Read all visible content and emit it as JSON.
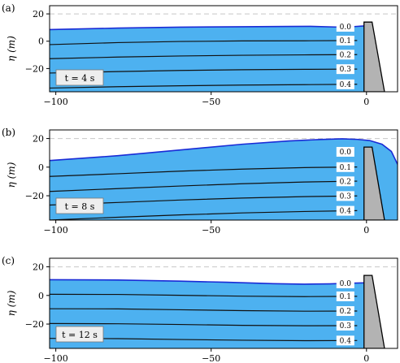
{
  "chart_data": [
    {
      "type": "area",
      "panel_label": "(a)",
      "time_label": "t = 4 s",
      "ylabel": "η (m)",
      "xlim": [
        -102,
        10
      ],
      "ylim": [
        -37,
        26
      ],
      "xticks": [
        -100,
        -50,
        0
      ],
      "xtick_labels": [
        "−100",
        "−50",
        "0"
      ],
      "yticks": [
        20,
        0,
        -20
      ],
      "ytick_labels": [
        "20",
        "0",
        "−20"
      ],
      "dashed_reference_y": 20,
      "surface": [
        [
          -102,
          8.5
        ],
        [
          -80,
          9.6
        ],
        [
          -60,
          10.3
        ],
        [
          -40,
          10.6
        ],
        [
          -25,
          10.8
        ],
        [
          -18,
          10.9
        ],
        [
          -10,
          10.4
        ],
        [
          -4,
          10.7
        ],
        [
          -0.8,
          11.2
        ]
      ],
      "wall": {
        "x_left": [
          -0.8,
          -0.8
        ],
        "x_right": [
          1.8,
          5.8
        ],
        "top": 14,
        "bottom": -37
      },
      "contours": [
        {
          "label": "0.1",
          "points": [
            [
              -102,
              -2.5
            ],
            [
              -80,
              -1.0
            ],
            [
              -60,
              -0.2
            ],
            [
              -40,
              0.2
            ],
            [
              -20,
              0.3
            ],
            [
              -3,
              0.5
            ]
          ]
        },
        {
          "label": "0.2",
          "points": [
            [
              -102,
              -12.8
            ],
            [
              -80,
              -11.6
            ],
            [
              -60,
              -10.8
            ],
            [
              -40,
              -10.3
            ],
            [
              -20,
              -10.0
            ],
            [
              -3,
              -9.8
            ]
          ]
        },
        {
          "label": "0.3",
          "points": [
            [
              -102,
              -23.3
            ],
            [
              -80,
              -22.2
            ],
            [
              -60,
              -21.4
            ],
            [
              -40,
              -20.9
            ],
            [
              -20,
              -20.6
            ],
            [
              -3,
              -20.4
            ]
          ]
        },
        {
          "label": "0.4",
          "points": [
            [
              -102,
              -34.3
            ],
            [
              -80,
              -33.3
            ],
            [
              -60,
              -32.6
            ],
            [
              -40,
              -32.1
            ],
            [
              -20,
              -31.8
            ],
            [
              -3,
              -31.5
            ]
          ]
        }
      ],
      "surface_label": "0.0"
    },
    {
      "type": "area",
      "panel_label": "(b)",
      "time_label": "t = 8 s",
      "ylabel": "η (m)",
      "xlim": [
        -102,
        10
      ],
      "ylim": [
        -37,
        26
      ],
      "xticks": [
        -100,
        -50,
        0
      ],
      "xtick_labels": [
        "−100",
        "−50",
        "0"
      ],
      "yticks": [
        20,
        0,
        -20
      ],
      "ytick_labels": [
        "20",
        "0",
        "−20"
      ],
      "dashed_reference_y": 20,
      "surface": [
        [
          -102,
          4.6
        ],
        [
          -80,
          8.0
        ],
        [
          -60,
          12.0
        ],
        [
          -40,
          16.0
        ],
        [
          -25,
          18.3
        ],
        [
          -15,
          19.3
        ],
        [
          -8,
          19.8
        ],
        [
          -3,
          19.4
        ],
        [
          1,
          18.6
        ],
        [
          5,
          16.0
        ],
        [
          8,
          11.0
        ],
        [
          10,
          2.0
        ]
      ],
      "wall": {
        "x_left": [
          -0.8,
          -0.8
        ],
        "x_right": [
          1.8,
          5.8
        ],
        "top": 14,
        "bottom": -37
      },
      "contours": [
        {
          "label": "0.1",
          "points": [
            [
              -102,
              -6.5
            ],
            [
              -80,
              -4.6
            ],
            [
              -60,
              -2.8
            ],
            [
              -40,
              -1.4
            ],
            [
              -20,
              -0.3
            ],
            [
              -3,
              0.1
            ]
          ]
        },
        {
          "label": "0.2",
          "points": [
            [
              -102,
              -17.0
            ],
            [
              -80,
              -15.0
            ],
            [
              -60,
              -13.2
            ],
            [
              -40,
              -11.6
            ],
            [
              -20,
              -10.4
            ],
            [
              -3,
              -9.8
            ]
          ]
        },
        {
          "label": "0.3",
          "points": [
            [
              -102,
              -26.5
            ],
            [
              -80,
              -24.7
            ],
            [
              -60,
              -23.0
            ],
            [
              -40,
              -21.6
            ],
            [
              -20,
              -20.6
            ],
            [
              -3,
              -20.1
            ]
          ]
        },
        {
          "label": "0.4",
          "points": [
            [
              -102,
              -37.0
            ],
            [
              -80,
              -35.0
            ],
            [
              -60,
              -33.4
            ],
            [
              -40,
              -32.0
            ],
            [
              -20,
              -31.0
            ],
            [
              -3,
              -30.4
            ]
          ]
        }
      ],
      "surface_label": "0.0"
    },
    {
      "type": "area",
      "panel_label": "(c)",
      "time_label": "t = 12 s",
      "ylabel": "η (m)",
      "xlim": [
        -102,
        10
      ],
      "ylim": [
        -37,
        26
      ],
      "xticks": [
        -100,
        -50,
        0
      ],
      "xtick_labels": [
        "−100",
        "−50",
        "0"
      ],
      "yticks": [
        20,
        0,
        -20
      ],
      "ytick_labels": [
        "20",
        "0",
        "−20"
      ],
      "dashed_reference_y": 20,
      "surface": [
        [
          -102,
          11.0
        ],
        [
          -80,
          10.8
        ],
        [
          -60,
          10.0
        ],
        [
          -45,
          9.2
        ],
        [
          -30,
          8.2
        ],
        [
          -20,
          7.9
        ],
        [
          -12,
          8.1
        ],
        [
          -6,
          8.5
        ],
        [
          -0.8,
          8.8
        ]
      ],
      "wall": {
        "x_left": [
          -0.8,
          -0.8
        ],
        "x_right": [
          1.8,
          5.8
        ],
        "top": 14,
        "bottom": -37
      },
      "contours": [
        {
          "label": "0.1",
          "points": [
            [
              -102,
              0.8
            ],
            [
              -80,
              0.7
            ],
            [
              -60,
              0.1
            ],
            [
              -40,
              -0.5
            ],
            [
              -20,
              -0.8
            ],
            [
              -3,
              -0.6
            ]
          ]
        },
        {
          "label": "0.2",
          "points": [
            [
              -102,
              -9.3
            ],
            [
              -80,
              -9.4
            ],
            [
              -60,
              -10.0
            ],
            [
              -40,
              -10.6
            ],
            [
              -20,
              -11.0
            ],
            [
              -3,
              -10.9
            ]
          ]
        },
        {
          "label": "0.3",
          "points": [
            [
              -102,
              -19.6
            ],
            [
              -80,
              -19.8
            ],
            [
              -60,
              -20.3
            ],
            [
              -40,
              -20.9
            ],
            [
              -20,
              -21.2
            ],
            [
              -3,
              -21.1
            ]
          ]
        },
        {
          "label": "0.4",
          "points": [
            [
              -102,
              -30.0
            ],
            [
              -80,
              -30.2
            ],
            [
              -60,
              -30.8
            ],
            [
              -40,
              -31.3
            ],
            [
              -20,
              -31.6
            ],
            [
              -3,
              -31.5
            ]
          ]
        }
      ],
      "surface_label": "0.0"
    }
  ],
  "colors": {
    "water": "#4db1f0",
    "surface_line": "#1a2bd6",
    "contour_line": "#111111",
    "wall": "#b3b3b3",
    "dashed": "#c8c8c8"
  }
}
